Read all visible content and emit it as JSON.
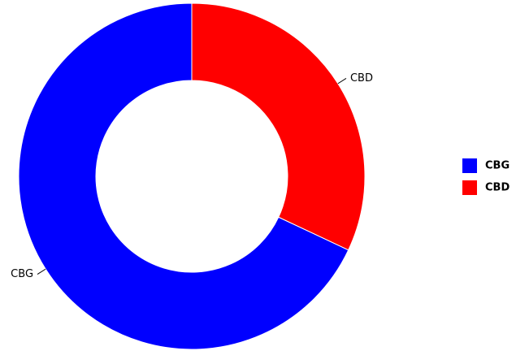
{
  "chart_data": {
    "type": "donut",
    "categories": [
      "CBG",
      "CBD"
    ],
    "values": [
      68,
      32
    ],
    "colors": [
      "#0000ff",
      "#ff0000"
    ],
    "legend": "right"
  }
}
